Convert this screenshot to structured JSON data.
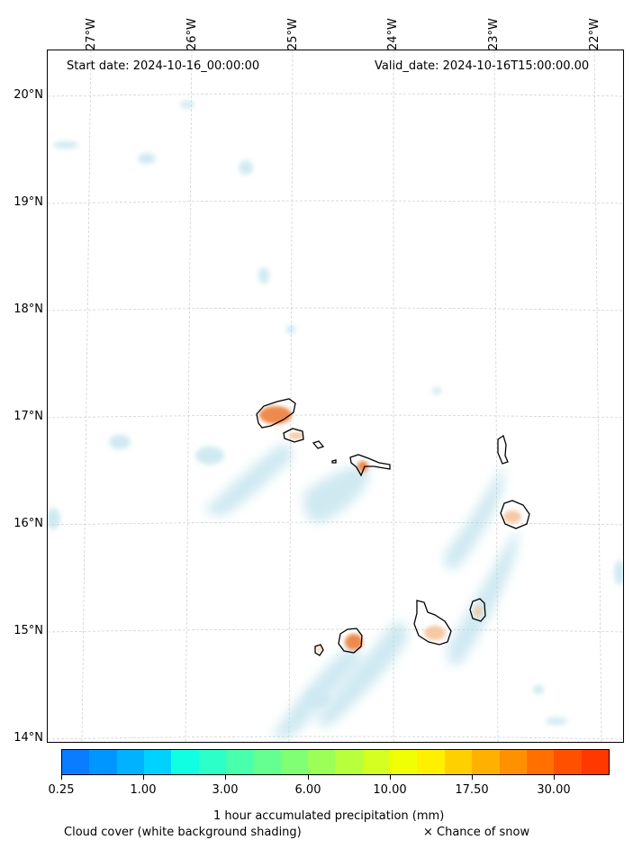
{
  "map": {
    "start_date": "Start date: 2024-10-16_00:00:00",
    "valid_date": "Valid_date: 2024-10-16T15:00:00.00",
    "longitude_labels": [
      "27°W",
      "26°W",
      "25°W",
      "24°W",
      "23°W",
      "22°W"
    ],
    "latitude_labels": [
      "20°N",
      "19°N",
      "18°N",
      "17°N",
      "16°N",
      "15°N",
      "14°N"
    ],
    "colors": {
      "cloud_shade": "#a8d8e6",
      "precip_light": "#f6c9a4",
      "precip_medium": "#ee8a4e",
      "coastline": "#000000",
      "gridline": "#cccccc"
    }
  },
  "colorbar": {
    "colors": [
      "#0a7cff",
      "#0096ff",
      "#00b2ff",
      "#00d2ff",
      "#10ffe3",
      "#2cffc8",
      "#48ffac",
      "#64ff90",
      "#80ff74",
      "#9cff58",
      "#b8ff3c",
      "#d4ff20",
      "#f0ff04",
      "#fff000",
      "#ffd000",
      "#ffb000",
      "#ff9000",
      "#ff7000",
      "#ff5000",
      "#ff3800"
    ],
    "tick_labels": [
      "0.25",
      "1.00",
      "3.00",
      "6.00",
      "10.00",
      "17.50",
      "30.00"
    ],
    "title": "1 hour accumulated precipitation (mm)"
  },
  "footer": {
    "cloud_note": "Cloud cover (white background shading)",
    "snow_note": "× Chance of snow"
  }
}
